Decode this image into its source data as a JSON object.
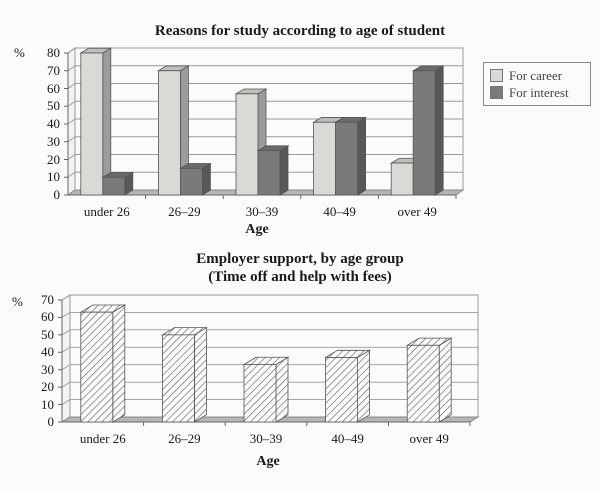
{
  "chart_data": [
    {
      "type": "bar",
      "title": "Reasons for study according to age of student",
      "xlabel": "Age",
      "ylabel": "%",
      "ylim": [
        0,
        80
      ],
      "yticks": [
        0,
        10,
        20,
        30,
        40,
        50,
        60,
        70,
        80
      ],
      "grid": true,
      "legend_position": "right",
      "categories": [
        "under 26",
        "26–29",
        "30–39",
        "40–49",
        "over 49"
      ],
      "series": [
        {
          "name": "For career",
          "values": [
            80,
            70,
            57,
            41,
            18
          ],
          "color": "#d9d9d6"
        },
        {
          "name": "For interest",
          "values": [
            10,
            15,
            25,
            41,
            70
          ],
          "color": "#7a7a78"
        }
      ]
    },
    {
      "type": "bar",
      "title": "Employer support, by age group",
      "subtitle": "(Time off and help with fees)",
      "xlabel": "Age",
      "ylabel": "%",
      "ylim": [
        0,
        70
      ],
      "yticks": [
        0,
        10,
        20,
        30,
        40,
        50,
        60,
        70
      ],
      "grid": true,
      "categories": [
        "under 26",
        "26–29",
        "30–39",
        "40–49",
        "over 49"
      ],
      "series": [
        {
          "name": "Employer support",
          "values": [
            63,
            50,
            33,
            37,
            44
          ],
          "pattern": "diagonal-hatch"
        }
      ]
    }
  ],
  "chart1": {
    "title": "Reasons for study according to age of student",
    "unit": "%",
    "xlabel": "Age",
    "yticks": [
      "80",
      "70",
      "60",
      "50",
      "40",
      "30",
      "20",
      "10",
      "0"
    ],
    "categories": [
      "under 26",
      "26–29",
      "30–39",
      "40–49",
      "over 49"
    ],
    "legend": [
      "For career",
      "For interest"
    ]
  },
  "chart2": {
    "title": "Employer support, by age group",
    "subtitle": "(Time off and help with fees)",
    "unit": "%",
    "xlabel": "Age",
    "yticks": [
      "70",
      "60",
      "50",
      "40",
      "30",
      "20",
      "10",
      "0"
    ],
    "categories": [
      "under 26",
      "26–29",
      "30–39",
      "40–49",
      "over 49"
    ]
  }
}
